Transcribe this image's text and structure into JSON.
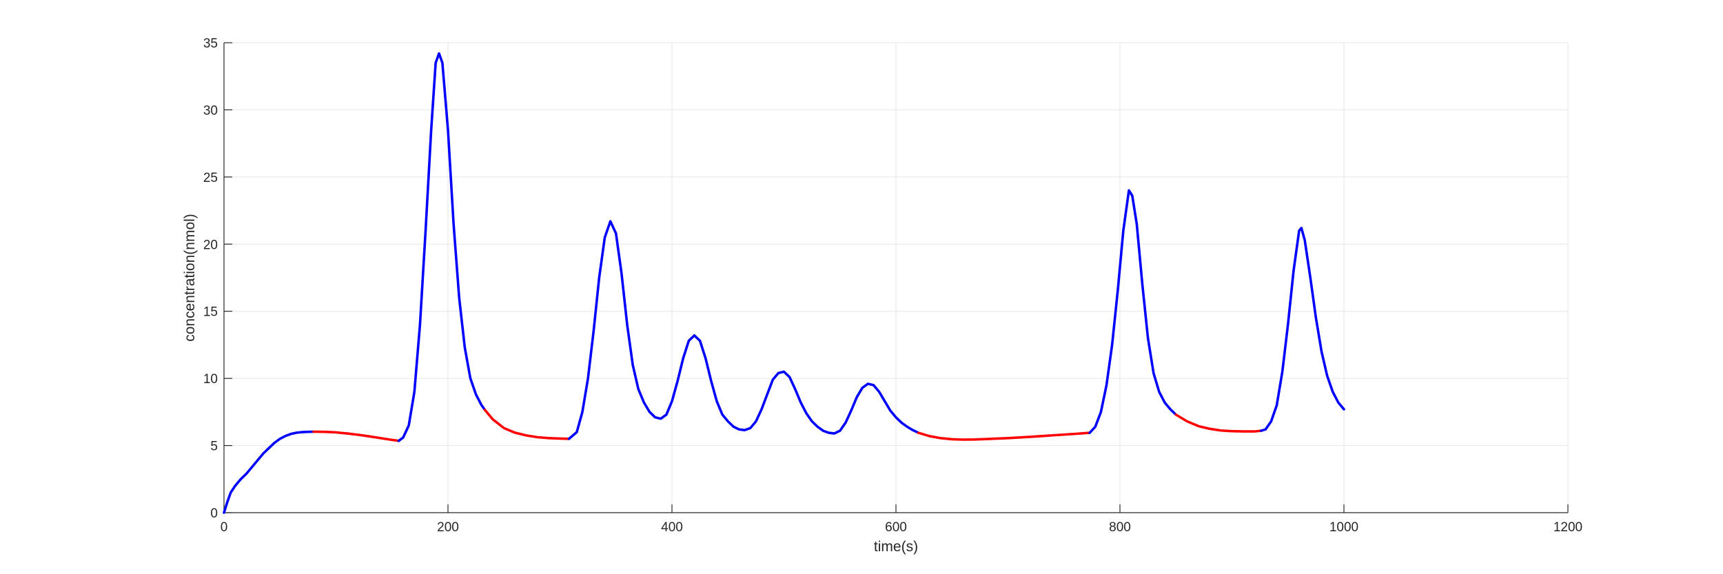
{
  "chart_data": {
    "type": "line",
    "title": "",
    "xlabel": "time(s)",
    "ylabel": "concentration(nmol)",
    "xlim": [
      0,
      1200
    ],
    "ylim": [
      0,
      35
    ],
    "xticks": [
      0,
      200,
      400,
      600,
      800,
      1000,
      1200
    ],
    "yticks": [
      0,
      5,
      10,
      15,
      20,
      25,
      30,
      35
    ],
    "grid": true,
    "colors": {
      "blue": "#0000ff",
      "red": "#ff0000",
      "axis": "#262626",
      "grid": "#e6e6e6"
    },
    "series": [
      {
        "color": "blue",
        "points": [
          [
            0,
            0
          ],
          [
            3,
            0.8
          ],
          [
            6,
            1.5
          ],
          [
            10,
            2.0
          ],
          [
            15,
            2.5
          ],
          [
            20,
            2.9
          ],
          [
            25,
            3.4
          ],
          [
            30,
            3.9
          ],
          [
            35,
            4.4
          ],
          [
            40,
            4.8
          ],
          [
            45,
            5.2
          ],
          [
            50,
            5.5
          ],
          [
            55,
            5.72
          ],
          [
            60,
            5.87
          ],
          [
            65,
            5.96
          ],
          [
            70,
            6.0
          ],
          [
            75,
            6.02
          ],
          [
            80,
            6.03
          ]
        ]
      },
      {
        "color": "red",
        "points": [
          [
            80,
            6.03
          ],
          [
            90,
            6.02
          ],
          [
            100,
            5.98
          ],
          [
            110,
            5.9
          ],
          [
            120,
            5.8
          ],
          [
            130,
            5.68
          ],
          [
            140,
            5.55
          ],
          [
            150,
            5.42
          ],
          [
            156,
            5.35
          ]
        ]
      },
      {
        "color": "blue",
        "points": [
          [
            156,
            5.35
          ],
          [
            160,
            5.6
          ],
          [
            165,
            6.5
          ],
          [
            170,
            9.0
          ],
          [
            175,
            14.0
          ],
          [
            180,
            21.0
          ],
          [
            185,
            28.5
          ],
          [
            189,
            33.5
          ],
          [
            192,
            34.2
          ],
          [
            195,
            33.5
          ],
          [
            200,
            28.5
          ],
          [
            205,
            21.5
          ],
          [
            210,
            16.0
          ],
          [
            215,
            12.3
          ],
          [
            220,
            10.0
          ],
          [
            225,
            8.8
          ],
          [
            230,
            8.0
          ],
          [
            233,
            7.65
          ]
        ]
      },
      {
        "color": "red",
        "points": [
          [
            233,
            7.65
          ],
          [
            240,
            6.95
          ],
          [
            250,
            6.3
          ],
          [
            260,
            5.95
          ],
          [
            270,
            5.75
          ],
          [
            280,
            5.62
          ],
          [
            290,
            5.55
          ],
          [
            300,
            5.52
          ],
          [
            308,
            5.5
          ]
        ]
      },
      {
        "color": "blue",
        "points": [
          [
            308,
            5.5
          ],
          [
            315,
            6.0
          ],
          [
            320,
            7.5
          ],
          [
            325,
            10.0
          ],
          [
            330,
            13.5
          ],
          [
            335,
            17.5
          ],
          [
            340,
            20.5
          ],
          [
            345,
            21.7
          ],
          [
            350,
            20.8
          ],
          [
            355,
            17.8
          ],
          [
            360,
            14.0
          ],
          [
            365,
            11.0
          ],
          [
            370,
            9.2
          ],
          [
            375,
            8.2
          ],
          [
            380,
            7.5
          ],
          [
            385,
            7.1
          ],
          [
            390,
            7.0
          ],
          [
            395,
            7.3
          ],
          [
            400,
            8.3
          ],
          [
            405,
            9.8
          ],
          [
            410,
            11.5
          ],
          [
            415,
            12.8
          ],
          [
            420,
            13.2
          ],
          [
            425,
            12.8
          ],
          [
            430,
            11.5
          ],
          [
            435,
            9.8
          ],
          [
            440,
            8.3
          ],
          [
            445,
            7.3
          ],
          [
            450,
            6.8
          ],
          [
            455,
            6.4
          ],
          [
            460,
            6.2
          ],
          [
            465,
            6.15
          ],
          [
            470,
            6.3
          ],
          [
            475,
            6.8
          ],
          [
            480,
            7.7
          ],
          [
            485,
            8.8
          ],
          [
            490,
            9.9
          ],
          [
            495,
            10.4
          ],
          [
            500,
            10.5
          ],
          [
            505,
            10.1
          ],
          [
            510,
            9.2
          ],
          [
            515,
            8.2
          ],
          [
            520,
            7.4
          ],
          [
            525,
            6.8
          ],
          [
            530,
            6.4
          ],
          [
            535,
            6.1
          ],
          [
            540,
            5.95
          ],
          [
            545,
            5.9
          ],
          [
            550,
            6.1
          ],
          [
            555,
            6.7
          ],
          [
            560,
            7.6
          ],
          [
            565,
            8.6
          ],
          [
            570,
            9.3
          ],
          [
            575,
            9.6
          ],
          [
            580,
            9.5
          ],
          [
            585,
            9.0
          ],
          [
            590,
            8.3
          ],
          [
            595,
            7.6
          ],
          [
            600,
            7.1
          ],
          [
            605,
            6.7
          ],
          [
            610,
            6.4
          ],
          [
            615,
            6.15
          ],
          [
            620,
            5.95
          ]
        ]
      },
      {
        "color": "red",
        "points": [
          [
            620,
            5.95
          ],
          [
            630,
            5.7
          ],
          [
            640,
            5.55
          ],
          [
            650,
            5.47
          ],
          [
            660,
            5.44
          ],
          [
            670,
            5.45
          ],
          [
            680,
            5.48
          ],
          [
            700,
            5.55
          ],
          [
            720,
            5.65
          ],
          [
            740,
            5.76
          ],
          [
            760,
            5.87
          ],
          [
            773,
            5.95
          ]
        ]
      },
      {
        "color": "blue",
        "points": [
          [
            773,
            5.95
          ],
          [
            778,
            6.4
          ],
          [
            783,
            7.5
          ],
          [
            788,
            9.5
          ],
          [
            793,
            12.5
          ],
          [
            798,
            16.5
          ],
          [
            803,
            21.0
          ],
          [
            808,
            24.0
          ],
          [
            811,
            23.6
          ],
          [
            815,
            21.5
          ],
          [
            820,
            17.0
          ],
          [
            825,
            13.0
          ],
          [
            830,
            10.4
          ],
          [
            835,
            9.0
          ],
          [
            840,
            8.2
          ],
          [
            845,
            7.7
          ],
          [
            850,
            7.3
          ]
        ]
      },
      {
        "color": "red",
        "points": [
          [
            850,
            7.3
          ],
          [
            860,
            6.8
          ],
          [
            870,
            6.45
          ],
          [
            880,
            6.25
          ],
          [
            890,
            6.12
          ],
          [
            900,
            6.07
          ],
          [
            910,
            6.05
          ],
          [
            920,
            6.05
          ],
          [
            926,
            6.1
          ]
        ]
      },
      {
        "color": "blue",
        "points": [
          [
            926,
            6.1
          ],
          [
            930,
            6.2
          ],
          [
            935,
            6.8
          ],
          [
            940,
            8.0
          ],
          [
            945,
            10.5
          ],
          [
            950,
            14.0
          ],
          [
            955,
            18.0
          ],
          [
            960,
            21.0
          ],
          [
            962,
            21.2
          ],
          [
            965,
            20.3
          ],
          [
            970,
            17.5
          ],
          [
            975,
            14.5
          ],
          [
            980,
            12.0
          ],
          [
            985,
            10.2
          ],
          [
            990,
            9.0
          ],
          [
            995,
            8.2
          ],
          [
            1000,
            7.7
          ]
        ]
      }
    ]
  }
}
